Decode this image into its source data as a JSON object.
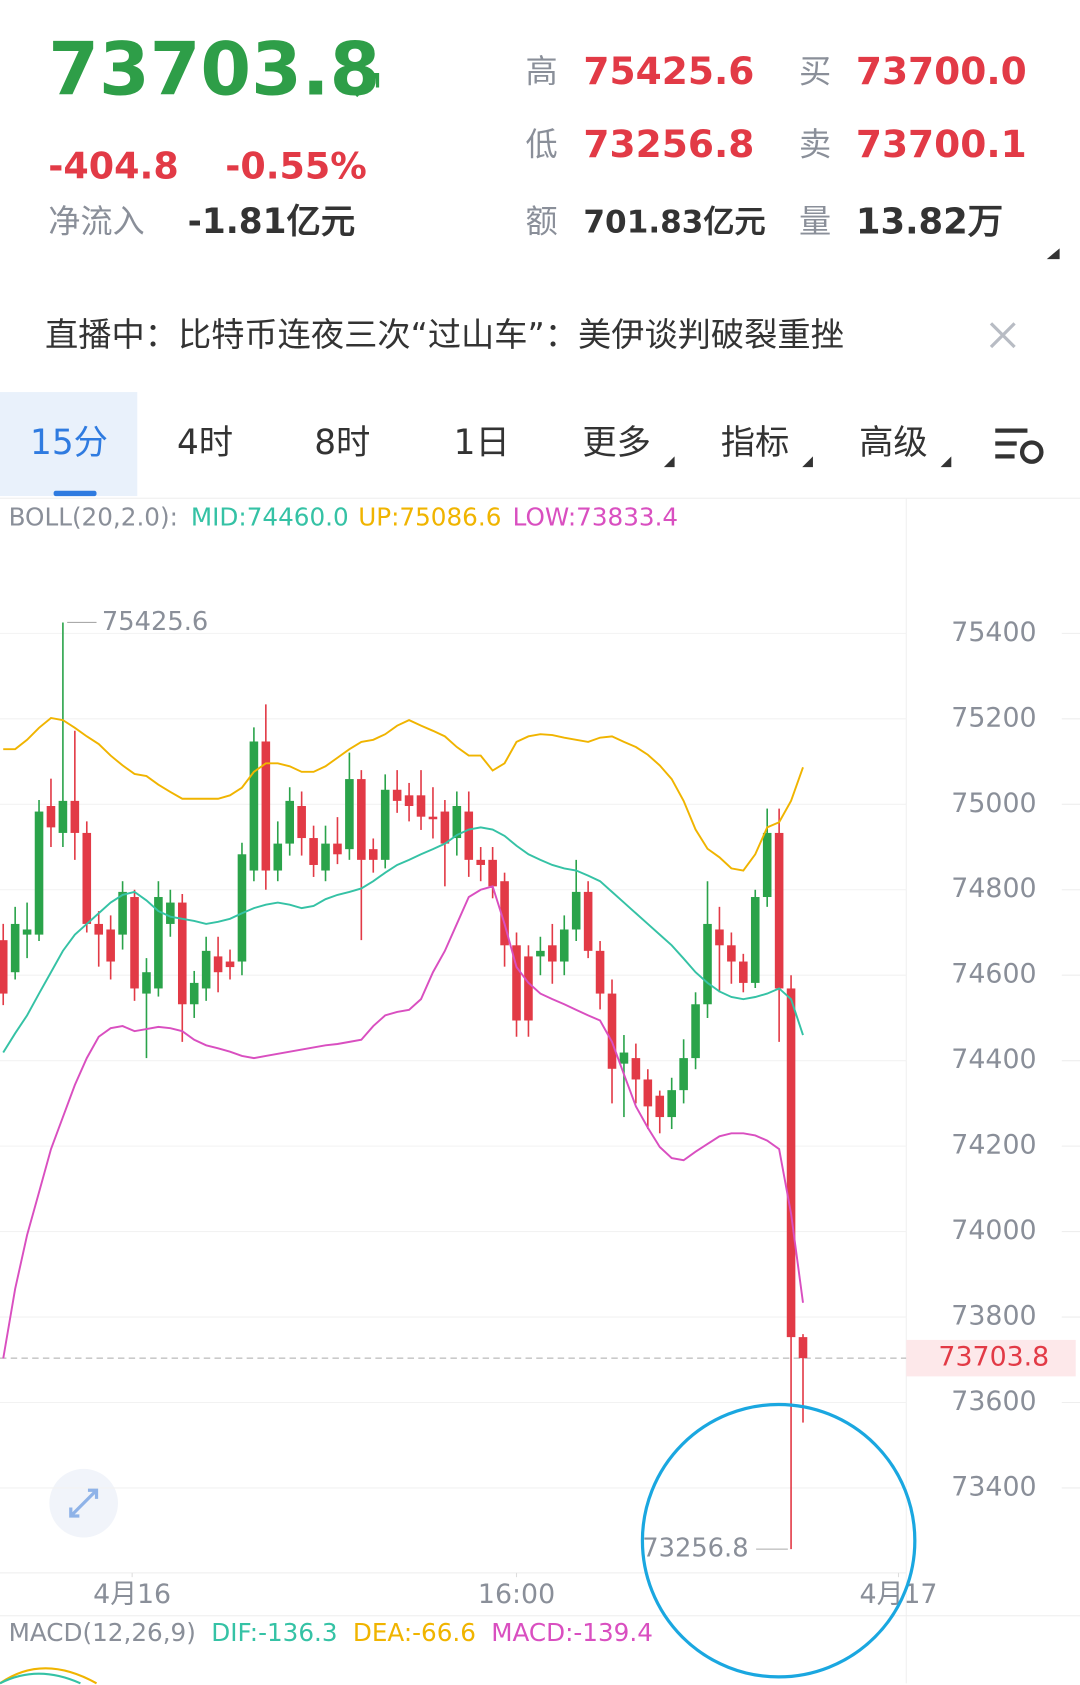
{
  "header": {
    "price": "73703.8",
    "change": "-404.8",
    "change_pct": "-0.55%",
    "inflow_label": "净流入",
    "inflow_value": "-1.81亿元",
    "high_label": "高",
    "high_value": "75425.6",
    "buy_label": "买",
    "buy_value": "73700.0",
    "low_label": "低",
    "low_value": "73256.8",
    "sell_label": "卖",
    "sell_value": "73700.1",
    "amount_label": "额",
    "amount_value": "701.83亿元",
    "volume_label": "量",
    "volume_value": "13.82万"
  },
  "banner": "直播中：比特币连夜三次“过山车”：美伊谈判破裂重挫",
  "tabs": [
    "15分",
    "4时",
    "8时",
    "1日",
    "更多",
    "指标",
    "高级"
  ],
  "chart_data": {
    "type": "candlestick",
    "indicator_label": "BOLL(20,2.0):",
    "up_color": "#2aa34a",
    "down_color": "#e23a46",
    "open": [
      74682,
      74607,
      74695,
      74695,
      74996,
      74933,
      75008,
      74933,
      74720,
      74707,
      74695,
      74783,
      74557,
      74569,
      74720,
      74770,
      74532,
      74569,
      74644,
      74632,
      74632,
      74845,
      75147,
      74845,
      74908,
      74996,
      74921,
      74845,
      74908,
      74895,
      75059,
      74895,
      74870,
      75034,
      75021,
      75021,
      74971,
      74983,
      74921,
      74983,
      74870,
      74870,
      74820,
      74670,
      74644,
      74644,
      74670,
      74632,
      74707,
      74795,
      74657,
      74557,
      74393,
      74406,
      74356,
      74318,
      74268,
      74331,
      74406,
      74532,
      74707,
      74670,
      74632,
      74582,
      74783,
      74933,
      74569,
      73753
    ],
    "high": [
      74720,
      74760,
      74770,
      75010,
      75060,
      75425.6,
      75172,
      74960,
      74750,
      74740,
      74820,
      74800,
      74640,
      74820,
      74800,
      74790,
      74610,
      74690,
      74690,
      74660,
      74910,
      75180,
      75234,
      74960,
      75040,
      75030,
      74950,
      74950,
      74970,
      75121,
      75080,
      74920,
      75070,
      75080,
      75050,
      75080,
      75040,
      75010,
      75030,
      75030,
      74900,
      74900,
      74840,
      74700,
      74670,
      74690,
      74720,
      74740,
      74870,
      74820,
      74680,
      74590,
      74460,
      74440,
      74380,
      74330,
      74360,
      74450,
      74560,
      74820,
      74760,
      74700,
      74650,
      74800,
      74990,
      74990,
      74600,
      73760
    ],
    "low": [
      74530,
      74590,
      74640,
      74680,
      74900,
      74900,
      74870,
      74700,
      74620,
      74590,
      74660,
      74540,
      74406,
      74550,
      74690,
      74444,
      74500,
      74540,
      74560,
      74590,
      74600,
      74820,
      74800,
      74820,
      74880,
      74880,
      74830,
      74820,
      74860,
      74870,
      74682,
      74840,
      74850,
      74980,
      74960,
      74940,
      74920,
      74808,
      74880,
      74830,
      74820,
      74780,
      74620,
      74456,
      74456,
      74600,
      74580,
      74600,
      74680,
      74640,
      74520,
      74300,
      74268,
      74300,
      74240,
      74230,
      74240,
      74300,
      74380,
      74500,
      74560,
      74580,
      74560,
      74570,
      74760,
      74444,
      73256.8,
      73553
    ],
    "close": [
      74557,
      74720,
      74707,
      74983,
      74946,
      75008,
      74933,
      74720,
      74695,
      74632,
      74795,
      74569,
      74607,
      74783,
      74770,
      74532,
      74582,
      74657,
      74607,
      74619,
      74883,
      75147,
      74845,
      74908,
      75008,
      74921,
      74858,
      74908,
      74883,
      75059,
      74870,
      74870,
      75034,
      75008,
      74996,
      74971,
      74965,
      74908,
      74996,
      74870,
      74858,
      74808,
      74670,
      74494,
      74494,
      74657,
      74632,
      74707,
      74795,
      74657,
      74557,
      74381,
      74419,
      74356,
      74293,
      74268,
      74331,
      74406,
      74532,
      74720,
      74670,
      74632,
      74582,
      74783,
      74933,
      74569,
      73753,
      73703.8
    ],
    "series": [
      {
        "name": "MID:74460.0",
        "color": "#35c2a5",
        "values": [
          74419,
          74464,
          74506,
          74557,
          74607,
          74657,
          74695,
          74720,
          74745,
          74770,
          74788,
          74795,
          74775,
          74750,
          74737,
          74732,
          74727,
          74720,
          74725,
          74732,
          74745,
          74757,
          74765,
          74770,
          74765,
          74757,
          74762,
          74778,
          74788,
          74795,
          74803,
          74820,
          74840,
          74858,
          74870,
          74883,
          74895,
          74908,
          74928,
          74941,
          74946,
          74941,
          74926,
          74903,
          74883,
          74870,
          74858,
          74850,
          74845,
          74833,
          74820,
          74795,
          74770,
          74745,
          74720,
          74695,
          74670,
          74639,
          74607,
          74582,
          74562,
          74549,
          74544,
          74549,
          74557,
          74569,
          74544,
          74460
        ]
      },
      {
        "name": "UP:75086.6",
        "color": "#f0b400",
        "values": [
          75129,
          75129,
          75151,
          75179,
          75202,
          75197,
          75179,
          75159,
          75141,
          75114,
          75091,
          75071,
          75066,
          75046,
          75029,
          75013,
          75013,
          75013,
          75013,
          75021,
          75039,
          75076,
          75096,
          75096,
          75089,
          75076,
          75076,
          75089,
          75109,
          75129,
          75146,
          75151,
          75164,
          75184,
          75197,
          75184,
          75172,
          75159,
          75134,
          75114,
          75114,
          75079,
          75096,
          75146,
          75159,
          75164,
          75162,
          75156,
          75151,
          75146,
          75156,
          75159,
          75146,
          75134,
          75116,
          75091,
          75059,
          75008,
          74941,
          74896,
          74876,
          74850,
          74845,
          74883,
          74946,
          74958,
          75008,
          75086.6
        ]
      },
      {
        "name": "LOW:73833.4",
        "color": "#d94fc0",
        "values": [
          73703,
          73866,
          73992,
          74092,
          74193,
          74268,
          74343,
          74406,
          74456,
          74476,
          74481,
          74469,
          74474,
          74479,
          74476,
          74469,
          74449,
          74436,
          74429,
          74421,
          74411,
          74406,
          74411,
          74416,
          74421,
          74426,
          74431,
          74436,
          74439,
          74444,
          74449,
          74481,
          74506,
          74514,
          74519,
          74544,
          74607,
          74657,
          74720,
          74783,
          74800,
          74808,
          74720,
          74619,
          74582,
          74557,
          74544,
          74532,
          74519,
          74506,
          74494,
          74444,
          74368,
          74293,
          74243,
          74198,
          74172,
          74167,
          74187,
          74205,
          74223,
          74230,
          74230,
          74225,
          74213,
          74193,
          74042,
          73833.4
        ]
      }
    ],
    "ylim": [
      73200,
      75700
    ],
    "yticks": [
      75400,
      75200,
      75000,
      74800,
      74600,
      74400,
      74200,
      74000,
      73800,
      73600,
      73400
    ],
    "xlim": [
      -0.27,
      75.65
    ],
    "xticks": [
      {
        "value": 10.8,
        "label": "4月16"
      },
      {
        "value": 43,
        "label": "16:00"
      },
      {
        "value": 75,
        "label": "4月17"
      }
    ],
    "last_price": 73703.8,
    "high_annotation": 75425.6,
    "low_annotation": 73256.8,
    "grid": true
  },
  "macd": {
    "title": "MACD(12,26,9)",
    "dif": "DIF:-136.3",
    "dea": "DEA:-66.6",
    "macd": "MACD:-139.4"
  }
}
